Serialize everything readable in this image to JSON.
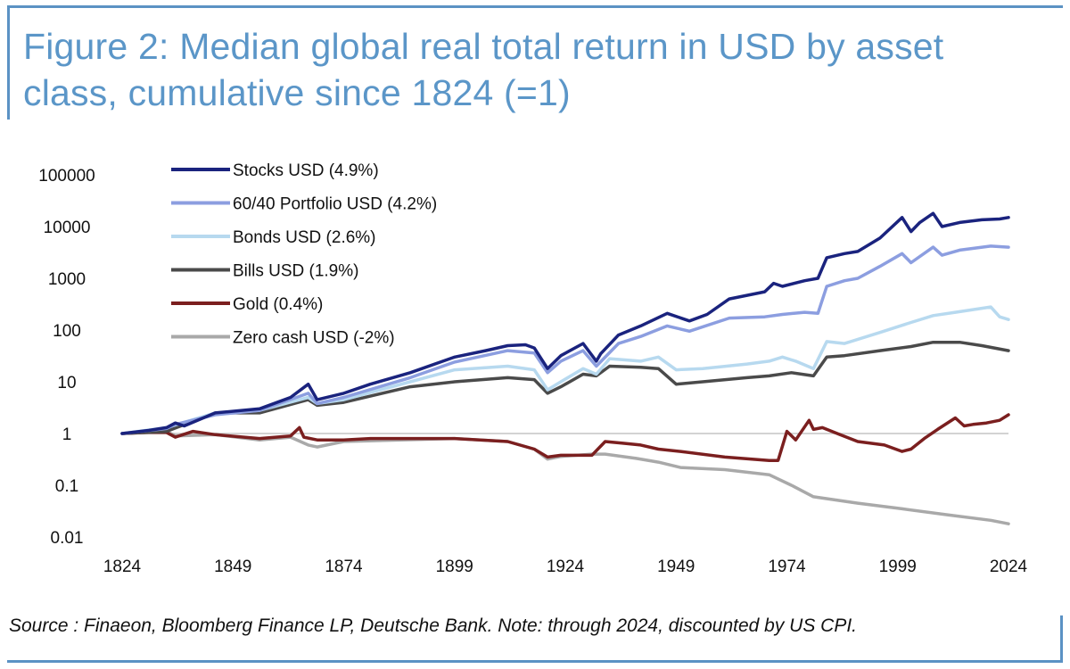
{
  "figure": {
    "title": "Figure 2: Median global real total return in USD by asset class, cumulative since 1824 (=1)",
    "source": "Source : Finaeon, Bloomberg Finance LP, Deutsche Bank. Note: through 2024, discounted by US CPI."
  },
  "chart_data": {
    "type": "line",
    "title": "Median global real total return in USD by asset class, cumulative since 1824 (=1)",
    "xlabel": "",
    "ylabel": "",
    "yscale": "log",
    "xlim": [
      1824,
      2026
    ],
    "ylim": [
      0.01,
      100000
    ],
    "x_ticks": [
      1824,
      1849,
      1874,
      1899,
      1924,
      1949,
      1974,
      1999,
      2024
    ],
    "x_tick_labels": [
      "1824",
      "1849",
      "1874",
      "1899",
      "1924",
      "1949",
      "1974",
      "1999",
      "2024"
    ],
    "y_ticks": [
      100000,
      10000,
      1000,
      100,
      10,
      1,
      0.1,
      0.01
    ],
    "y_tick_labels": [
      "100000",
      "10000",
      "1000",
      "100",
      "10",
      "1",
      "0.1",
      "0.01"
    ],
    "reference_line": 1,
    "legend_position": "top-left",
    "series": [
      {
        "name": "Stocks USD (4.9%)",
        "color": "#1a237e",
        "points": [
          [
            1824,
            1
          ],
          [
            1830,
            1.15
          ],
          [
            1834,
            1.3
          ],
          [
            1836,
            1.6
          ],
          [
            1838,
            1.4
          ],
          [
            1845,
            2.5
          ],
          [
            1855,
            3
          ],
          [
            1862,
            5
          ],
          [
            1866,
            9
          ],
          [
            1868,
            4.5
          ],
          [
            1874,
            6
          ],
          [
            1880,
            9
          ],
          [
            1889,
            15
          ],
          [
            1899,
            30
          ],
          [
            1906,
            40
          ],
          [
            1911,
            50
          ],
          [
            1915,
            52
          ],
          [
            1917,
            45
          ],
          [
            1920,
            18
          ],
          [
            1923,
            32
          ],
          [
            1928,
            55
          ],
          [
            1931,
            25
          ],
          [
            1932,
            35
          ],
          [
            1936,
            80
          ],
          [
            1941,
            120
          ],
          [
            1947,
            210
          ],
          [
            1952,
            150
          ],
          [
            1956,
            200
          ],
          [
            1961,
            400
          ],
          [
            1969,
            550
          ],
          [
            1971,
            800
          ],
          [
            1973,
            700
          ],
          [
            1978,
            900
          ],
          [
            1981,
            1000
          ],
          [
            1983,
            2500
          ],
          [
            1987,
            3000
          ],
          [
            1990,
            3300
          ],
          [
            1995,
            6000
          ],
          [
            2000,
            15000
          ],
          [
            2002,
            8000
          ],
          [
            2004,
            12000
          ],
          [
            2007,
            18000
          ],
          [
            2009,
            10000
          ],
          [
            2013,
            12000
          ],
          [
            2018,
            13500
          ],
          [
            2022,
            14000
          ],
          [
            2024,
            15000
          ]
        ]
      },
      {
        "name": "60/40 Portfolio USD (4.2%)",
        "color": "#8c9ee0",
        "points": [
          [
            1824,
            1
          ],
          [
            1834,
            1.25
          ],
          [
            1836,
            1.5
          ],
          [
            1845,
            2.3
          ],
          [
            1855,
            2.8
          ],
          [
            1866,
            6
          ],
          [
            1868,
            3.8
          ],
          [
            1874,
            5
          ],
          [
            1889,
            12
          ],
          [
            1899,
            24
          ],
          [
            1911,
            40
          ],
          [
            1917,
            36
          ],
          [
            1920,
            15
          ],
          [
            1923,
            25
          ],
          [
            1928,
            40
          ],
          [
            1931,
            20
          ],
          [
            1936,
            55
          ],
          [
            1941,
            75
          ],
          [
            1947,
            120
          ],
          [
            1952,
            95
          ],
          [
            1961,
            170
          ],
          [
            1969,
            180
          ],
          [
            1973,
            200
          ],
          [
            1978,
            220
          ],
          [
            1981,
            210
          ],
          [
            1983,
            700
          ],
          [
            1987,
            900
          ],
          [
            1990,
            1000
          ],
          [
            1995,
            1700
          ],
          [
            2000,
            3000
          ],
          [
            2002,
            2000
          ],
          [
            2007,
            4000
          ],
          [
            2009,
            2800
          ],
          [
            2013,
            3500
          ],
          [
            2020,
            4200
          ],
          [
            2024,
            4000
          ]
        ]
      },
      {
        "name": "Bonds USD (2.6%)",
        "color": "#b7d9ef",
        "points": [
          [
            1824,
            1
          ],
          [
            1834,
            1.3
          ],
          [
            1845,
            2.5
          ],
          [
            1855,
            2.8
          ],
          [
            1866,
            5
          ],
          [
            1868,
            3.8
          ],
          [
            1874,
            4.5
          ],
          [
            1889,
            10
          ],
          [
            1899,
            17
          ],
          [
            1911,
            20
          ],
          [
            1917,
            17
          ],
          [
            1920,
            7
          ],
          [
            1923,
            10
          ],
          [
            1928,
            18
          ],
          [
            1931,
            14
          ],
          [
            1934,
            28
          ],
          [
            1941,
            25
          ],
          [
            1945,
            30
          ],
          [
            1949,
            17
          ],
          [
            1955,
            18
          ],
          [
            1965,
            22
          ],
          [
            1970,
            25
          ],
          [
            1973,
            30
          ],
          [
            1976,
            25
          ],
          [
            1980,
            18
          ],
          [
            1983,
            60
          ],
          [
            1987,
            55
          ],
          [
            1995,
            90
          ],
          [
            2002,
            140
          ],
          [
            2007,
            190
          ],
          [
            2012,
            220
          ],
          [
            2020,
            280
          ],
          [
            2022,
            180
          ],
          [
            2024,
            160
          ]
        ]
      },
      {
        "name": "Bills USD (1.9%)",
        "color": "#4a4a4a",
        "points": [
          [
            1824,
            1
          ],
          [
            1834,
            1.1
          ],
          [
            1845,
            2.5
          ],
          [
            1855,
            2.5
          ],
          [
            1866,
            4.5
          ],
          [
            1868,
            3.5
          ],
          [
            1874,
            4
          ],
          [
            1889,
            8
          ],
          [
            1899,
            10
          ],
          [
            1911,
            12
          ],
          [
            1917,
            11
          ],
          [
            1920,
            6
          ],
          [
            1923,
            8
          ],
          [
            1928,
            14
          ],
          [
            1931,
            13
          ],
          [
            1934,
            20
          ],
          [
            1941,
            19
          ],
          [
            1945,
            18
          ],
          [
            1949,
            9
          ],
          [
            1955,
            10
          ],
          [
            1965,
            12
          ],
          [
            1970,
            13
          ],
          [
            1975,
            15
          ],
          [
            1980,
            13
          ],
          [
            1983,
            30
          ],
          [
            1987,
            32
          ],
          [
            1995,
            40
          ],
          [
            2002,
            48
          ],
          [
            2007,
            58
          ],
          [
            2013,
            58
          ],
          [
            2018,
            50
          ],
          [
            2024,
            40
          ]
        ]
      },
      {
        "name": "Gold (0.4%)",
        "color": "#7b1f1f",
        "points": [
          [
            1824,
            1
          ],
          [
            1830,
            1.05
          ],
          [
            1834,
            1.05
          ],
          [
            1836,
            0.85
          ],
          [
            1840,
            1.1
          ],
          [
            1845,
            0.95
          ],
          [
            1855,
            0.8
          ],
          [
            1862,
            0.9
          ],
          [
            1864,
            1.3
          ],
          [
            1865,
            0.85
          ],
          [
            1868,
            0.75
          ],
          [
            1874,
            0.75
          ],
          [
            1880,
            0.8
          ],
          [
            1889,
            0.8
          ],
          [
            1899,
            0.8
          ],
          [
            1911,
            0.7
          ],
          [
            1917,
            0.5
          ],
          [
            1920,
            0.35
          ],
          [
            1923,
            0.38
          ],
          [
            1930,
            0.38
          ],
          [
            1933,
            0.7
          ],
          [
            1937,
            0.65
          ],
          [
            1941,
            0.6
          ],
          [
            1945,
            0.5
          ],
          [
            1950,
            0.45
          ],
          [
            1960,
            0.35
          ],
          [
            1970,
            0.3
          ],
          [
            1972,
            0.3
          ],
          [
            1974,
            1.1
          ],
          [
            1976,
            0.75
          ],
          [
            1979,
            1.8
          ],
          [
            1980,
            1.2
          ],
          [
            1982,
            1.3
          ],
          [
            1986,
            0.95
          ],
          [
            1990,
            0.7
          ],
          [
            1996,
            0.6
          ],
          [
            2000,
            0.45
          ],
          [
            2002,
            0.5
          ],
          [
            2005,
            0.8
          ],
          [
            2008,
            1.2
          ],
          [
            2012,
            2
          ],
          [
            2014,
            1.4
          ],
          [
            2016,
            1.5
          ],
          [
            2019,
            1.6
          ],
          [
            2022,
            1.8
          ],
          [
            2024,
            2.3
          ]
        ]
      },
      {
        "name": "Zero cash USD (-2%)",
        "color": "#a9a9a9",
        "points": [
          [
            1824,
            1
          ],
          [
            1830,
            1.05
          ],
          [
            1834,
            1.1
          ],
          [
            1836,
            0.9
          ],
          [
            1845,
            0.95
          ],
          [
            1855,
            0.75
          ],
          [
            1862,
            0.85
          ],
          [
            1866,
            0.6
          ],
          [
            1868,
            0.55
          ],
          [
            1874,
            0.7
          ],
          [
            1899,
            0.8
          ],
          [
            1911,
            0.7
          ],
          [
            1917,
            0.5
          ],
          [
            1920,
            0.32
          ],
          [
            1923,
            0.36
          ],
          [
            1930,
            0.4
          ],
          [
            1933,
            0.4
          ],
          [
            1940,
            0.33
          ],
          [
            1945,
            0.28
          ],
          [
            1950,
            0.22
          ],
          [
            1960,
            0.2
          ],
          [
            1970,
            0.16
          ],
          [
            1975,
            0.1
          ],
          [
            1980,
            0.06
          ],
          [
            1990,
            0.045
          ],
          [
            2000,
            0.035
          ],
          [
            2010,
            0.027
          ],
          [
            2020,
            0.021
          ],
          [
            2024,
            0.018
          ]
        ]
      }
    ]
  }
}
